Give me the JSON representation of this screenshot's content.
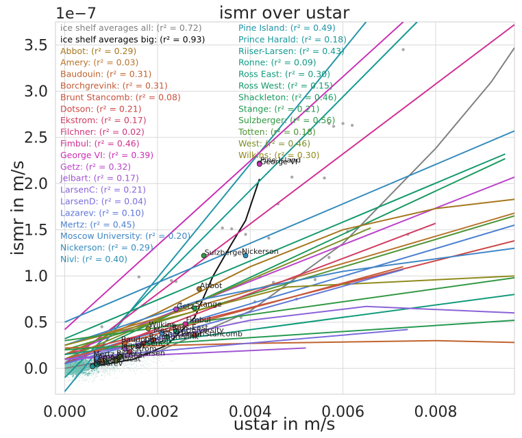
{
  "chart_data": {
    "type": "scatter",
    "title": "ismr over ustar",
    "xlabel": "ustar in m/s",
    "ylabel": "ismr in m/s",
    "y_offset_text": "1e−7",
    "xlim": [
      -0.0002,
      0.0097
    ],
    "ylim": [
      -0.28,
      3.75
    ],
    "x_ticks": [
      0.0,
      0.002,
      0.004,
      0.006,
      0.008
    ],
    "x_tick_labels": [
      "0.000",
      "0.002",
      "0.004",
      "0.006",
      "0.008"
    ],
    "y_ticks": [
      0.0,
      0.5,
      1.0,
      1.5,
      2.0,
      2.5,
      3.0,
      3.5
    ],
    "y_tick_labels": [
      "0.0",
      "0.5",
      "1.0",
      "1.5",
      "2.0",
      "2.5",
      "3.0",
      "3.5"
    ],
    "grid": true,
    "legend_left_placement": "top-left",
    "legend_right_placement": "top-center",
    "legend": [
      {
        "text": "ice shelf averages all: (r² = 0.72)",
        "color": "#808080"
      },
      {
        "text": "ice shelf averages big: (r² = 0.93)",
        "color": "#000000"
      },
      {
        "text": "Abbot: (r² = 0.29)",
        "color": "#a6761d"
      },
      {
        "text": "Amery: (r² = 0.03)",
        "color": "#b8732a"
      },
      {
        "text": "Baudouin: (r² = 0.31)",
        "color": "#c0622d"
      },
      {
        "text": "Borchgrevink: (r² = 0.31)",
        "color": "#c45a35"
      },
      {
        "text": "Brunt Stancomb: (r² = 0.08)",
        "color": "#c8503b"
      },
      {
        "text": "Dotson: (r² = 0.21)",
        "color": "#cc4444"
      },
      {
        "text": "Ekstrom: (r² = 0.17)",
        "color": "#d03c60"
      },
      {
        "text": "Filchner: (r² = 0.02)",
        "color": "#d2347a"
      },
      {
        "text": "Fimbul: (r² = 0.46)",
        "color": "#d02f93"
      },
      {
        "text": "George VI: (r² = 0.39)",
        "color": "#c930b5"
      },
      {
        "text": "Getz: (r² = 0.32)",
        "color": "#b944c8"
      },
      {
        "text": "Jelbart: (r² = 0.17)",
        "color": "#a056d2"
      },
      {
        "text": "LarsenC: (r² = 0.21)",
        "color": "#8a62d8"
      },
      {
        "text": "LarsenD: (r² = 0.04)",
        "color": "#7a6cdc"
      },
      {
        "text": "Lazarev: (r² = 0.10)",
        "color": "#5f76d8"
      },
      {
        "text": "Mertz: (r² = 0.45)",
        "color": "#4a7fd0"
      },
      {
        "text": "Moscow University: (r² = 0.20)",
        "color": "#3f86c6"
      },
      {
        "text": "Nickerson: (r² = 0.29)",
        "color": "#358bbd"
      },
      {
        "text": "Nivl: (r² = 0.40)",
        "color": "#2e8fb3"
      },
      {
        "text": "Pine Island: (r² = 0.49)",
        "color": "#2194a8"
      },
      {
        "text": "Prince Harald: (r² = 0.18)",
        "color": "#19989c"
      },
      {
        "text": "Riiser-Larsen: (r² = 0.43)",
        "color": "#129a90"
      },
      {
        "text": "Ronne: (r² = 0.09)",
        "color": "#0f9b85"
      },
      {
        "text": "Ross East: (r² = 0.30)",
        "color": "#109a7a"
      },
      {
        "text": "Ross West: (r² = 0.15)",
        "color": "#14986d"
      },
      {
        "text": "Shackleton: (r² = 0.46)",
        "color": "#1a9a60"
      },
      {
        "text": "Stange: (r² = 0.21)",
        "color": "#259a52"
      },
      {
        "text": "Sulzberger: (r² = 0.56)",
        "color": "#319843"
      },
      {
        "text": "Totten: (r² = 0.18)",
        "color": "#4d9434"
      },
      {
        "text": "West: (r² = 0.46)",
        "color": "#7a8e26"
      },
      {
        "text": "Wilkins: (r² = 0.30)",
        "color": "#8f8a1c"
      }
    ],
    "fit_lines": [
      {
        "name": "ice shelf averages all",
        "color": "#808080",
        "points": [
          [
            0.0,
            0.0
          ],
          [
            0.002,
            0.18
          ],
          [
            0.004,
            0.62
          ],
          [
            0.006,
            1.35
          ],
          [
            0.008,
            2.38
          ],
          [
            0.0092,
            3.1
          ],
          [
            0.0097,
            3.47
          ]
        ]
      },
      {
        "name": "ice shelf averages big",
        "color": "#111111",
        "points": [
          [
            0.0006,
            0.02
          ],
          [
            0.0015,
            0.1
          ],
          [
            0.0022,
            0.25
          ],
          [
            0.0028,
            0.55
          ],
          [
            0.0032,
            1.0
          ],
          [
            0.0036,
            1.35
          ],
          [
            0.0039,
            1.6
          ],
          [
            0.0042,
            2.05
          ]
        ]
      },
      {
        "name": "Pine Island",
        "color": "#2194a8",
        "points": [
          [
            0.0,
            -0.25
          ],
          [
            0.0065,
            3.75
          ]
        ]
      },
      {
        "name": "Riiser-Larsen",
        "color": "#129a90",
        "points": [
          [
            0.0,
            -0.1
          ],
          [
            0.0076,
            3.75
          ]
        ]
      },
      {
        "name": "George VI",
        "color": "#c930b5",
        "points": [
          [
            0.0,
            0.42
          ],
          [
            0.0073,
            3.75
          ]
        ]
      },
      {
        "name": "Fimbul",
        "color": "#d02f93",
        "points": [
          [
            0.0,
            0.05
          ],
          [
            0.0097,
            3.72
          ]
        ]
      },
      {
        "name": "Nickerson",
        "color": "#358bbd",
        "points": [
          [
            0.0,
            0.5
          ],
          [
            0.0097,
            2.57
          ]
        ]
      },
      {
        "name": "Ross West",
        "color": "#14986d",
        "points": [
          [
            0.0,
            0.32
          ],
          [
            0.0095,
            2.32
          ]
        ]
      },
      {
        "name": "Shackleton",
        "color": "#1a9a60",
        "points": [
          [
            0.0,
            0.05
          ],
          [
            0.0095,
            2.27
          ]
        ]
      },
      {
        "name": "Getz",
        "color": "#b944c8",
        "points": [
          [
            0.0,
            0.15
          ],
          [
            0.0097,
            2.07
          ]
        ]
      },
      {
        "name": "Abbot",
        "color": "#a6761d",
        "points": [
          [
            0.0,
            0.15
          ],
          [
            0.002,
            0.6
          ],
          [
            0.004,
            1.1
          ],
          [
            0.006,
            1.5
          ],
          [
            0.008,
            1.73
          ],
          [
            0.0097,
            1.83
          ]
        ]
      },
      {
        "name": "Amery",
        "color": "#b8732a",
        "points": [
          [
            0.0,
            0.25
          ],
          [
            0.0097,
            1.68
          ]
        ]
      },
      {
        "name": "Totten",
        "color": "#4d9434",
        "points": [
          [
            0.0,
            0.2
          ],
          [
            0.0097,
            1.65
          ]
        ]
      },
      {
        "name": "Mertz",
        "color": "#4a7fd0",
        "points": [
          [
            0.0,
            0.1
          ],
          [
            0.0097,
            1.55
          ]
        ]
      },
      {
        "name": "Dotson",
        "color": "#cc4444",
        "points": [
          [
            0.0,
            0.15
          ],
          [
            0.0097,
            1.38
          ]
        ]
      },
      {
        "name": "West",
        "color": "#7a8e26",
        "points": [
          [
            0.0,
            0.1
          ],
          [
            0.0066,
            1.52
          ]
        ]
      },
      {
        "name": "Ekstrom",
        "color": "#d03c60",
        "points": [
          [
            0.0,
            0.05
          ],
          [
            0.008,
            1.57
          ]
        ]
      },
      {
        "name": "Moscow University",
        "color": "#3f86c6",
        "points": [
          [
            0.0,
            0.25
          ],
          [
            0.003,
            0.75
          ],
          [
            0.006,
            1.05
          ],
          [
            0.0097,
            1.3
          ]
        ]
      },
      {
        "name": "Wilkins",
        "color": "#8f8a1c",
        "points": [
          [
            0.0,
            0.25
          ],
          [
            0.0048,
            0.88
          ],
          [
            0.0097,
            1.0
          ]
        ]
      },
      {
        "name": "Ross East",
        "color": "#109a7a",
        "points": [
          [
            0.0,
            0.15
          ],
          [
            0.0097,
            0.8
          ]
        ]
      },
      {
        "name": "Lazarev",
        "color": "#5f76d8",
        "points": [
          [
            0.0,
            0.05
          ],
          [
            0.0073,
            1.07
          ]
        ]
      },
      {
        "name": "LarsenC",
        "color": "#8a62d8",
        "points": [
          [
            0.0,
            0.1
          ],
          [
            0.004,
            0.52
          ],
          [
            0.0065,
            0.67
          ],
          [
            0.0097,
            0.6
          ]
        ]
      },
      {
        "name": "Borchgrevink",
        "color": "#c45a35",
        "points": [
          [
            0.0,
            0.1
          ],
          [
            0.0073,
            1.1
          ]
        ]
      },
      {
        "name": "Baudouin",
        "color": "#c0622d",
        "points": [
          [
            0.0,
            0.22
          ],
          [
            0.004,
            0.27
          ],
          [
            0.008,
            0.3
          ],
          [
            0.0097,
            0.28
          ]
        ]
      },
      {
        "name": "Stange",
        "color": "#259a52",
        "points": [
          [
            0.0,
            0.2
          ],
          [
            0.0097,
            0.52
          ]
        ]
      },
      {
        "name": "LarsenD",
        "color": "#7a6cdc",
        "points": [
          [
            0.0,
            0.1
          ],
          [
            0.0074,
            0.42
          ]
        ]
      },
      {
        "name": "Sulzberger",
        "color": "#319843",
        "points": [
          [
            0.0,
            0.3
          ],
          [
            0.0097,
            0.98
          ]
        ]
      },
      {
        "name": "Jelbart",
        "color": "#a056d2",
        "points": [
          [
            0.0,
            0.1
          ],
          [
            0.0052,
            0.22
          ]
        ]
      }
    ],
    "shelf_points": [
      {
        "name": "Pine Island",
        "x": 0.0042,
        "y": 2.22,
        "color": "#2194a8"
      },
      {
        "name": "George VI",
        "x": 0.0042,
        "y": 2.21,
        "color": "#c930b5"
      },
      {
        "name": "Sulzberger",
        "x": 0.003,
        "y": 1.22,
        "color": "#319843"
      },
      {
        "name": "Nickerson",
        "x": 0.0039,
        "y": 1.22,
        "color": "#358bbd"
      },
      {
        "name": "Abbot",
        "x": 0.0029,
        "y": 0.86,
        "color": "#a6761d"
      },
      {
        "name": "Stange",
        "x": 0.0028,
        "y": 0.65,
        "color": "#259a52"
      },
      {
        "name": "Getz",
        "x": 0.0024,
        "y": 0.64,
        "color": "#b944c8"
      },
      {
        "name": "Fimbul",
        "x": 0.0026,
        "y": 0.48,
        "color": "#d02f93"
      },
      {
        "name": "Wilkins",
        "x": 0.0018,
        "y": 0.43,
        "color": "#8f8a1c"
      },
      {
        "name": "Ross East",
        "x": 0.0024,
        "y": 0.4,
        "color": "#109a7a"
      },
      {
        "name": "Moscow University",
        "x": 0.0021,
        "y": 0.38,
        "color": "#3f86c6"
      },
      {
        "name": "Brunt Stancomb",
        "x": 0.0028,
        "y": 0.36,
        "color": "#c8503b"
      },
      {
        "name": "Shackleton",
        "x": 0.0022,
        "y": 0.34,
        "color": "#1a9a60"
      },
      {
        "name": "Borchgrevink",
        "x": 0.0019,
        "y": 0.31,
        "color": "#c45a35"
      },
      {
        "name": "Dotson",
        "x": 0.0017,
        "y": 0.27,
        "color": "#cc4444"
      },
      {
        "name": "Baudouin",
        "x": 0.0013,
        "y": 0.27,
        "color": "#c0622d"
      },
      {
        "name": "LarsenC",
        "x": 0.0016,
        "y": 0.24,
        "color": "#8a62d8"
      },
      {
        "name": "Jelbart",
        "x": 0.0013,
        "y": 0.21,
        "color": "#a056d2"
      },
      {
        "name": "Ekstrom",
        "x": 0.0014,
        "y": 0.18,
        "color": "#d03c60"
      },
      {
        "name": "Riiser-Larsen",
        "x": 0.0012,
        "y": 0.13,
        "color": "#129a90"
      },
      {
        "name": "Filchner",
        "x": 0.0011,
        "y": 0.1,
        "color": "#d2347a"
      },
      {
        "name": "Mertz",
        "x": 0.0007,
        "y": 0.11,
        "color": "#4a7fd0"
      },
      {
        "name": "Amery",
        "x": 0.0008,
        "y": 0.08,
        "color": "#b8732a"
      },
      {
        "name": "Ross West",
        "x": 0.0009,
        "y": 0.07,
        "color": "#14986d"
      },
      {
        "name": "LarsenD",
        "x": 0.0007,
        "y": 0.06,
        "color": "#7a6cdc"
      },
      {
        "name": "Ronne",
        "x": 0.0007,
        "y": 0.04,
        "color": "#0f9b85"
      },
      {
        "name": "Nivl",
        "x": 0.0006,
        "y": 0.03,
        "color": "#2e8fb3"
      },
      {
        "name": "Lazarev",
        "x": 0.0006,
        "y": 0.02,
        "color": "#5f76d8"
      },
      {
        "name": "Prince Harald",
        "x": 0.0006,
        "y": 0.02,
        "color": "#19989c"
      },
      {
        "name": "Totten",
        "x": 0.0012,
        "y": 0.12,
        "color": "#4d9434"
      },
      {
        "name": "West",
        "x": 0.0011,
        "y": 0.09,
        "color": "#7a8e26"
      }
    ],
    "point_annotations": [
      {
        "text": "Pine Island",
        "x": 0.0042,
        "y": 2.22
      },
      {
        "text": "George VI",
        "x": 0.0042,
        "y": 2.2
      },
      {
        "text": "Sulzberger",
        "x": 0.003,
        "y": 1.22
      },
      {
        "text": "Nickerson",
        "x": 0.0038,
        "y": 1.23
      },
      {
        "text": "Abbot",
        "x": 0.0029,
        "y": 0.86
      },
      {
        "text": "Stange",
        "x": 0.0028,
        "y": 0.66
      },
      {
        "text": "Getz",
        "x": 0.0024,
        "y": 0.64
      },
      {
        "text": "Fimbul",
        "x": 0.0026,
        "y": 0.49
      },
      {
        "text": "Wilkins",
        "x": 0.0018,
        "y": 0.44
      },
      {
        "text": "Ross East",
        "x": 0.0023,
        "y": 0.41
      },
      {
        "text": "Moscow University",
        "x": 0.0019,
        "y": 0.38
      },
      {
        "text": "Brunt Stancomb",
        "x": 0.0025,
        "y": 0.34
      },
      {
        "text": "Shackleton",
        "x": 0.0021,
        "y": 0.34
      },
      {
        "text": "Borchgrevink",
        "x": 0.0018,
        "y": 0.31
      },
      {
        "text": "Dotson",
        "x": 0.0017,
        "y": 0.27
      },
      {
        "text": "Baudouin",
        "x": 0.0012,
        "y": 0.28
      },
      {
        "text": "LarsenC",
        "x": 0.0015,
        "y": 0.24
      },
      {
        "text": "Jelbart",
        "x": 0.0012,
        "y": 0.21
      },
      {
        "text": "Ekstrom",
        "x": 0.0013,
        "y": 0.18
      },
      {
        "text": "Riiser-Larsen",
        "x": 0.0011,
        "y": 0.13
      },
      {
        "text": "Filchner",
        "x": 0.0011,
        "y": 0.11
      },
      {
        "text": "Mertz",
        "x": 0.0006,
        "y": 0.12
      },
      {
        "text": "Amery",
        "x": 0.0007,
        "y": 0.09
      },
      {
        "text": "Ross West",
        "x": 0.0008,
        "y": 0.07
      },
      {
        "text": "LarsenD",
        "x": 0.0006,
        "y": 0.06
      },
      {
        "text": "Nivl",
        "x": 0.0006,
        "y": 0.03
      },
      {
        "text": "Lazarev",
        "x": 0.0006,
        "y": 0.02
      }
    ],
    "outlier_points": [
      [
        0.0016,
        0.99
      ],
      [
        0.0023,
        0.95
      ],
      [
        0.0024,
        0.94
      ],
      [
        0.0057,
        2.65
      ],
      [
        0.0058,
        2.62
      ],
      [
        0.006,
        2.65
      ],
      [
        0.0062,
        2.63
      ],
      [
        0.0073,
        3.45
      ],
      [
        0.0049,
        2.07
      ],
      [
        0.0046,
        1.78
      ],
      [
        0.0056,
        2.06
      ],
      [
        0.0034,
        1.52
      ],
      [
        0.0036,
        1.51
      ],
      [
        0.0044,
        1.41
      ],
      [
        0.0039,
        1.45
      ],
      [
        0.0074,
        1.45
      ],
      [
        0.0057,
        1.2
      ],
      [
        0.0045,
        0.93
      ],
      [
        0.005,
        0.75
      ],
      [
        0.0032,
        0.78
      ],
      [
        0.0038,
        0.55
      ],
      [
        0.0028,
        0.58
      ],
      [
        0.0041,
        0.72
      ],
      [
        0.0031,
        0.55
      ],
      [
        0.0054,
        0.96
      ],
      [
        0.0061,
        1.48
      ],
      [
        0.0042,
        0.99
      ],
      [
        0.0025,
        0.7
      ],
      [
        0.0008,
        0.45
      ],
      [
        0.0015,
        0.32
      ]
    ]
  }
}
